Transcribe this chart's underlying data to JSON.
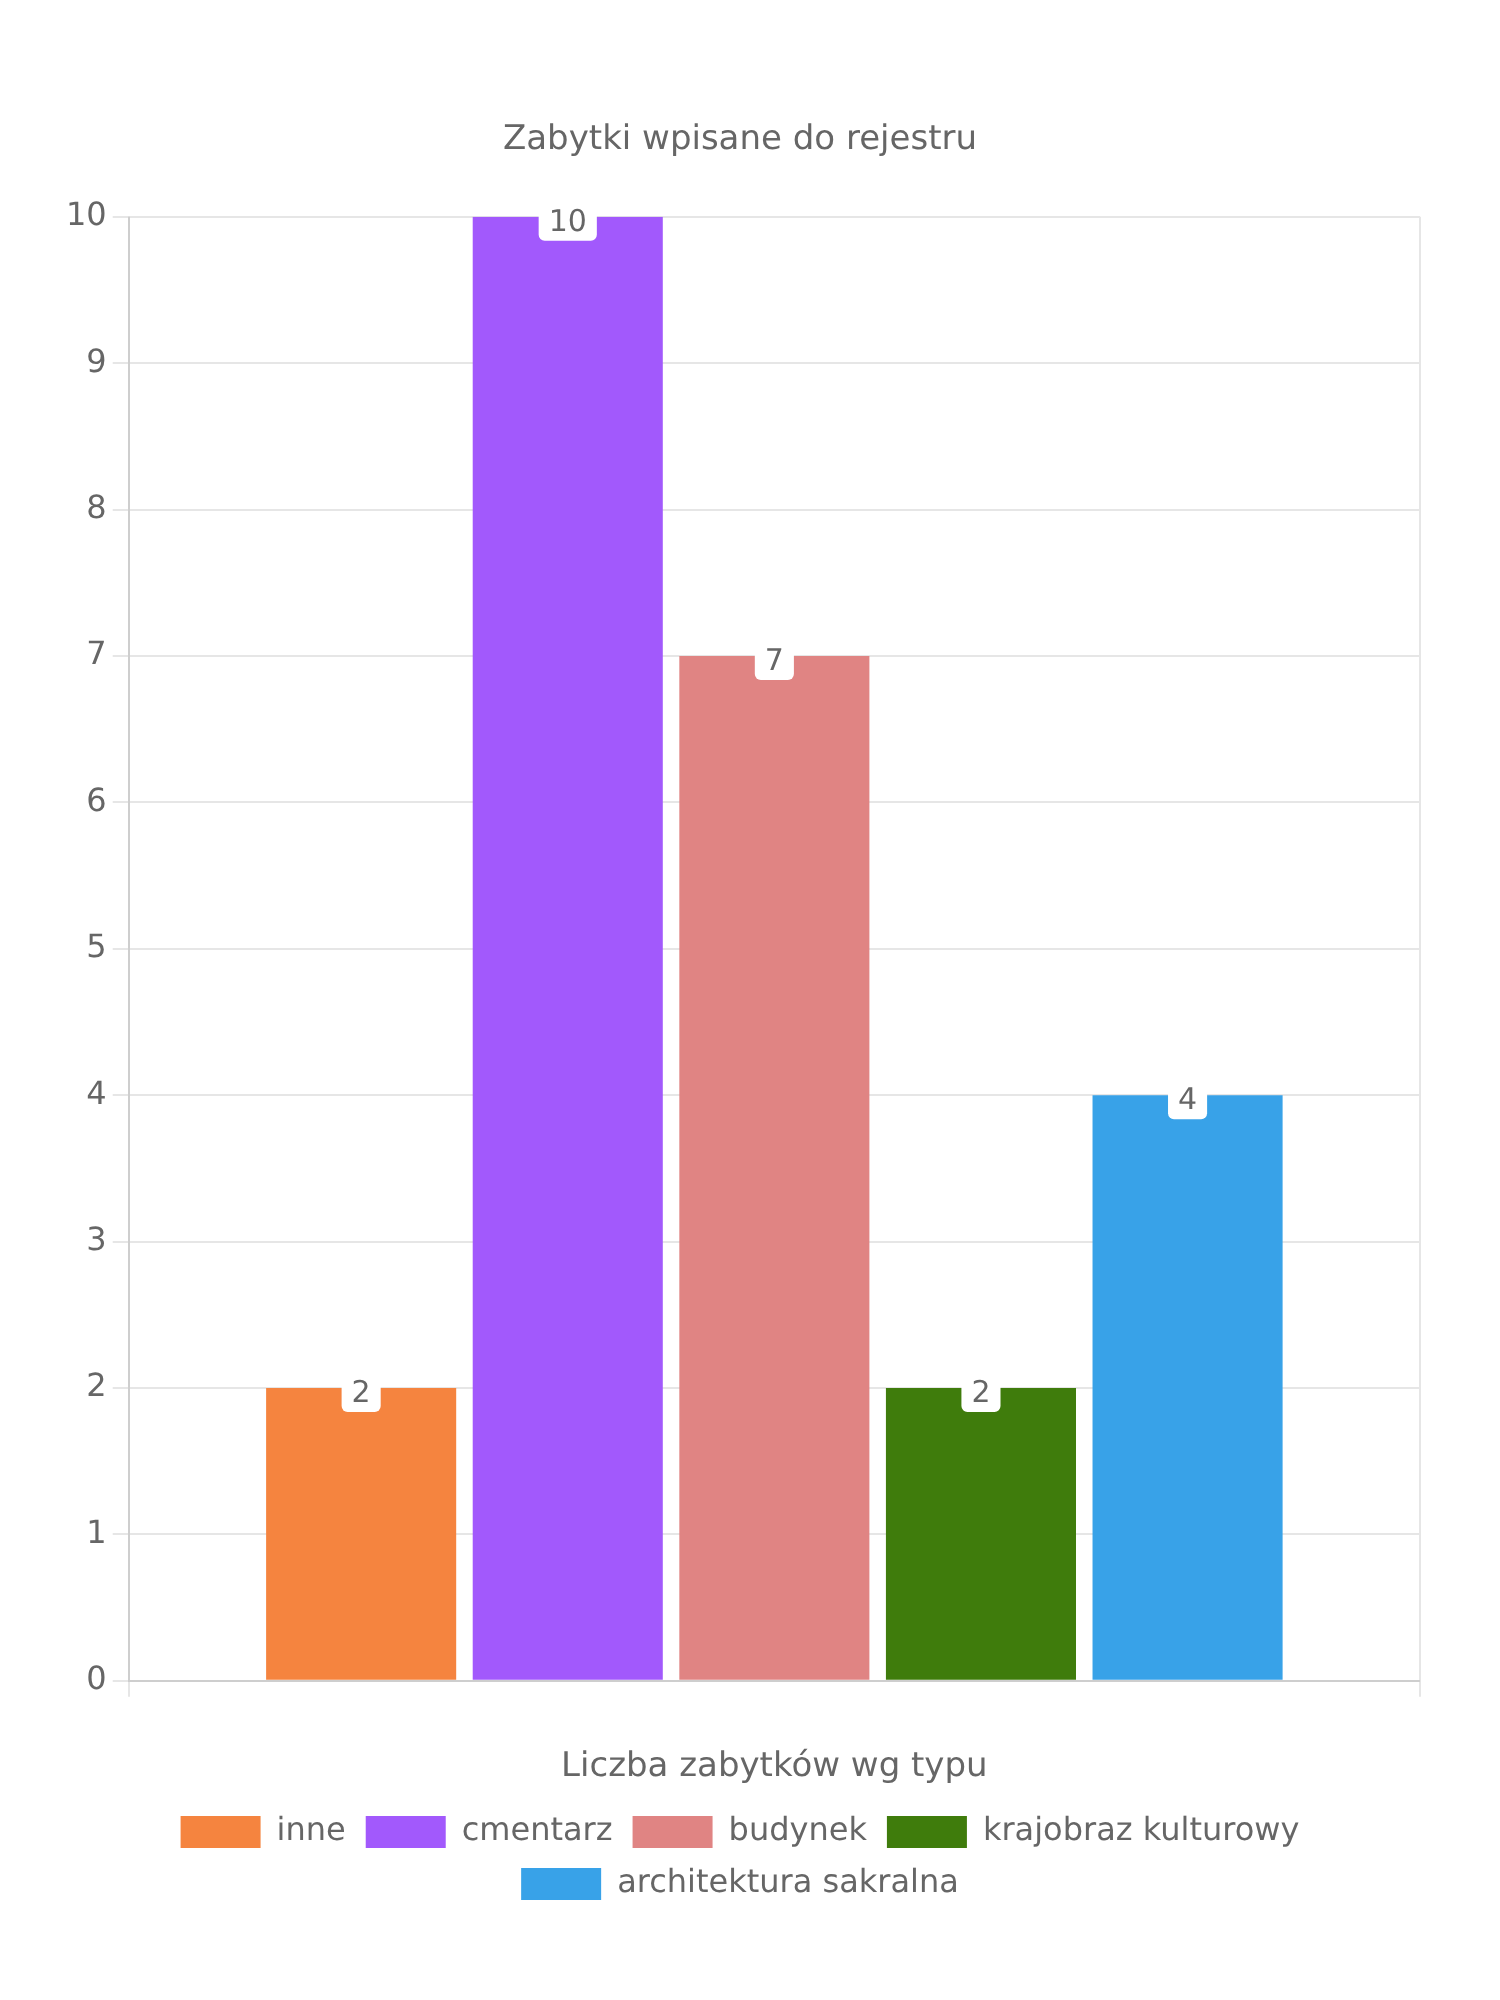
{
  "chart_data": {
    "type": "bar",
    "title": "Zabytki wpisane do rejestru",
    "xlabel": "Liczba zabytków wg typu",
    "categories": [
      null
    ],
    "series": [
      {
        "name": "inne",
        "color": "#f5843f",
        "values": [
          2
        ]
      },
      {
        "name": "cmentarz",
        "color": "#a259fc",
        "values": [
          10
        ]
      },
      {
        "name": "budynek",
        "color": "#e08483",
        "values": [
          7
        ]
      },
      {
        "name": "krajobraz kulturowy",
        "color": "#3f7c0c",
        "values": [
          2
        ]
      },
      {
        "name": "architektura sakralna",
        "color": "#38a2e8",
        "values": [
          4
        ]
      }
    ],
    "ylim": [
      0,
      10
    ],
    "yticks": [
      0,
      1,
      2,
      3,
      4,
      5,
      6,
      7,
      8,
      9,
      10
    ],
    "grid": true,
    "legend": "bottom",
    "data_labels": true
  }
}
